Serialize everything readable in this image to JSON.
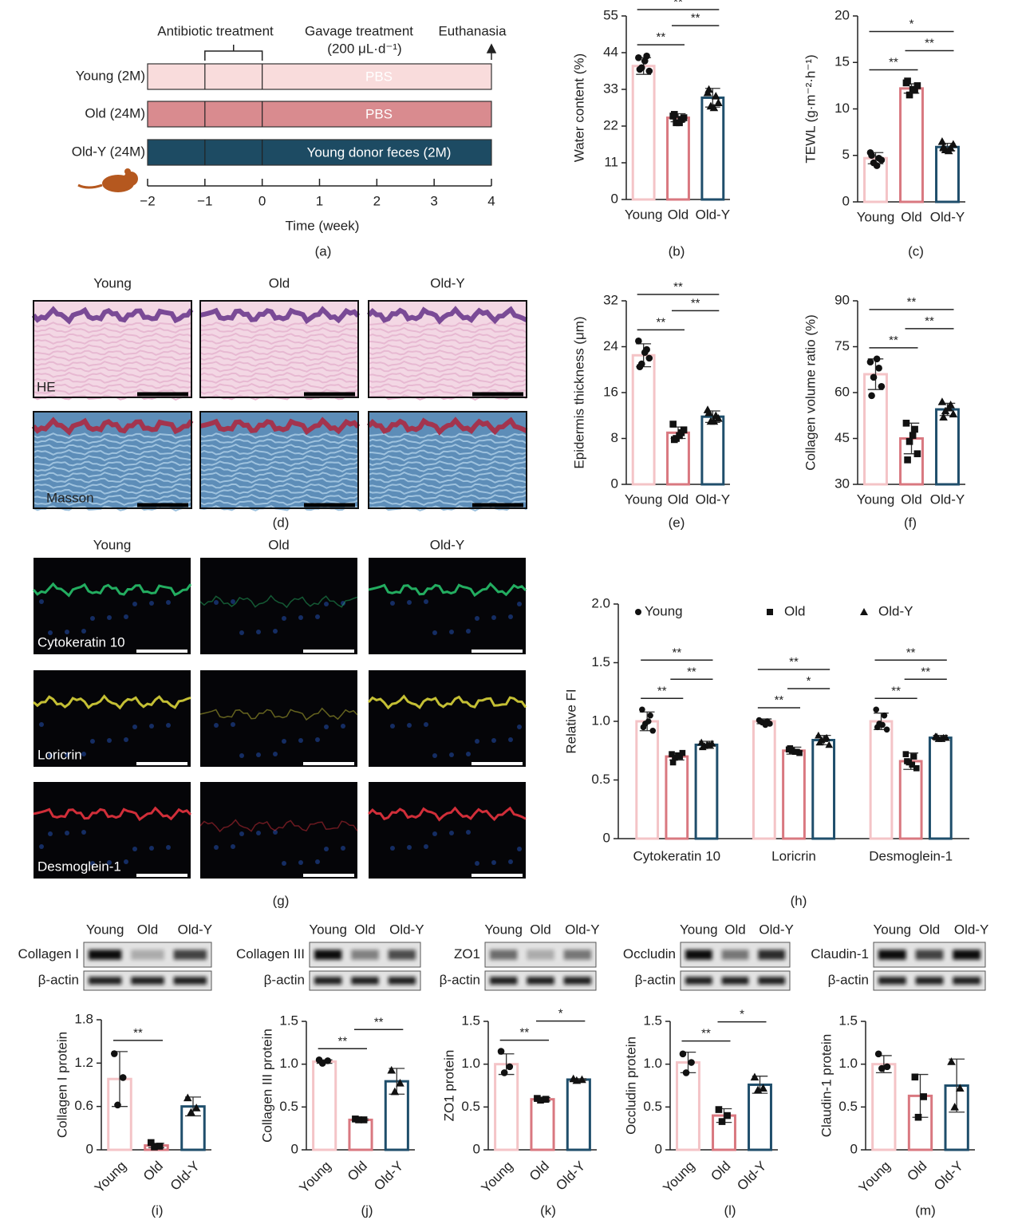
{
  "timeline": {
    "annotations": {
      "antibiotic": "Antibiotic treatment",
      "gavage": "Gavage treatment",
      "dose": "(200 μL·d⁻¹)",
      "end": "Euthanasia"
    },
    "rows": [
      {
        "label": "Young (2M)",
        "bar_text": "PBS",
        "color": "#f9dcdc"
      },
      {
        "label": "Old (24M)",
        "bar_text": "PBS",
        "color": "#d98b8f"
      },
      {
        "label": "Old-Y (24M)",
        "bar_text": "Young donor feces (2M)",
        "color": "#1d4b63"
      }
    ],
    "ticks": [
      {
        "value": -2,
        "label": "−2"
      },
      {
        "value": -1,
        "label": "−1"
      },
      0,
      1,
      2,
      3,
      4
    ],
    "xlabel": "Time (week)",
    "caption": "(a)"
  },
  "histology": {
    "columns": [
      "Young",
      "Old",
      "Old-Y"
    ],
    "rows": [
      "HE",
      "Masson"
    ],
    "caption": "(d)"
  },
  "immunofluorescence": {
    "columns": [
      "Young",
      "Old",
      "Old-Y"
    ],
    "rows": [
      "Cytokeratin 10",
      "Loricrin",
      "Desmoglein-1"
    ],
    "caption": "(g)"
  },
  "chart_data": [
    {
      "type": "bar",
      "caption": "(b)",
      "ylabel": "Water content (%)",
      "categories": [
        "Young",
        "Old",
        "Old-Y"
      ],
      "colors": [
        "#f4c4c7",
        "#d97880",
        "#1f4e6b"
      ],
      "markers": [
        "circle",
        "square",
        "triangle"
      ],
      "values": [
        40,
        24.5,
        30.5
      ],
      "errors": [
        2.5,
        1.2,
        2.8
      ],
      "points": [
        [
          42.5,
          43,
          39.5,
          38.5,
          39,
          41.5
        ],
        [
          25,
          24,
          23,
          24.5,
          25.5,
          23
        ],
        [
          32,
          31,
          28,
          29,
          33,
          27.5
        ]
      ],
      "ylim": [
        0,
        55
      ],
      "yticks": [
        0,
        11,
        22,
        33,
        44,
        55
      ],
      "significance": [
        {
          "pair": [
            "Young",
            "Old"
          ],
          "label": "**"
        },
        {
          "pair": [
            "Old",
            "Old-Y"
          ],
          "label": "**"
        },
        {
          "pair": [
            "Young",
            "Old-Y"
          ],
          "label": "**"
        }
      ]
    },
    {
      "type": "bar",
      "caption": "(c)",
      "ylabel": "TEWL (g·m⁻²·h⁻¹)",
      "categories": [
        "Young",
        "Old",
        "Old-Y"
      ],
      "colors": [
        "#f4c4c7",
        "#d97880",
        "#1f4e6b"
      ],
      "markers": [
        "circle",
        "square",
        "triangle"
      ],
      "values": [
        4.7,
        12.2,
        5.9
      ],
      "errors": [
        0.6,
        0.5,
        0.4
      ],
      "points": [
        [
          5.3,
          4.7,
          4.2,
          4.5,
          5.0,
          3.9
        ],
        [
          12.8,
          12.0,
          11.5,
          12.5,
          13.0,
          12.1
        ],
        [
          6.5,
          5.8,
          5.6,
          6.2,
          5.9,
          5.5
        ]
      ],
      "ylim": [
        0,
        20
      ],
      "yticks": [
        0,
        5,
        10,
        15,
        20
      ],
      "significance": [
        {
          "pair": [
            "Young",
            "Old"
          ],
          "label": "**"
        },
        {
          "pair": [
            "Old",
            "Old-Y"
          ],
          "label": "**"
        },
        {
          "pair": [
            "Young",
            "Old-Y"
          ],
          "label": "*"
        }
      ]
    },
    {
      "type": "bar",
      "caption": "(e)",
      "ylabel": "Epidermis thickness (μm)",
      "categories": [
        "Young",
        "Old",
        "Old-Y"
      ],
      "colors": [
        "#f4c4c7",
        "#d97880",
        "#1f4e6b"
      ],
      "markers": [
        "circle",
        "square",
        "triangle"
      ],
      "values": [
        22.5,
        9,
        11.8
      ],
      "errors": [
        2,
        1,
        1
      ],
      "points": [
        [
          25,
          23.5,
          21,
          22,
          20.5,
          23
        ],
        [
          10.5,
          9,
          8,
          9.5,
          7.8,
          8.5
        ],
        [
          13,
          12,
          11,
          11.5,
          12.5,
          11
        ]
      ],
      "ylim": [
        0,
        32
      ],
      "yticks": [
        0,
        8,
        16,
        24,
        32
      ],
      "significance": [
        {
          "pair": [
            "Young",
            "Old"
          ],
          "label": "**"
        },
        {
          "pair": [
            "Old",
            "Old-Y"
          ],
          "label": "**"
        },
        {
          "pair": [
            "Young",
            "Old-Y"
          ],
          "label": "**"
        }
      ]
    },
    {
      "type": "bar",
      "caption": "(f)",
      "ylabel": "Collagen volume ratio (%)",
      "categories": [
        "Young",
        "Old",
        "Old-Y"
      ],
      "colors": [
        "#f4c4c7",
        "#d97880",
        "#1f4e6b"
      ],
      "markers": [
        "circle",
        "square",
        "triangle"
      ],
      "values": [
        66,
        45,
        54.5
      ],
      "errors": [
        5,
        5,
        2
      ],
      "points": [
        [
          70,
          68,
          65,
          62,
          59,
          71
        ],
        [
          50,
          48,
          44,
          40,
          38,
          46
        ],
        [
          57,
          56,
          54,
          53,
          52,
          55
        ]
      ],
      "ylim": [
        30,
        90
      ],
      "yticks": [
        30,
        45,
        60,
        75,
        90
      ],
      "significance": [
        {
          "pair": [
            "Young",
            "Old"
          ],
          "label": "**"
        },
        {
          "pair": [
            "Old",
            "Old-Y"
          ],
          "label": "**"
        },
        {
          "pair": [
            "Young",
            "Old-Y"
          ],
          "label": "**"
        }
      ]
    },
    {
      "type": "grouped_bar",
      "caption": "(h)",
      "ylabel": "Relative FI",
      "legend": "top",
      "categories": [
        "Cytokeratin 10",
        "Loricrin",
        "Desmoglein-1"
      ],
      "series": [
        {
          "name": "Young",
          "color": "#f4c4c7",
          "marker": "circle",
          "values": [
            1.0,
            1.0,
            1.0
          ],
          "errors": [
            0.08,
            0.02,
            0.07
          ],
          "points": [
            [
              1.1,
              1.05,
              0.98,
              0.92,
              0.95,
              1.0
            ],
            [
              1.01,
              1.0,
              0.99,
              0.98,
              1.0,
              0.97
            ],
            [
              1.1,
              1.05,
              0.98,
              0.93,
              0.95,
              0.97
            ]
          ]
        },
        {
          "name": "Old",
          "color": "#d97880",
          "marker": "square",
          "values": [
            0.7,
            0.75,
            0.66
          ],
          "errors": [
            0.03,
            0.03,
            0.07
          ],
          "points": [
            [
              0.72,
              0.7,
              0.69,
              0.73,
              0.65,
              0.71
            ],
            [
              0.76,
              0.74,
              0.75,
              0.73,
              0.77,
              0.74
            ],
            [
              0.72,
              0.7,
              0.65,
              0.6,
              0.66,
              0.63
            ]
          ]
        },
        {
          "name": "Old-Y",
          "color": "#1f4e6b",
          "marker": "triangle",
          "values": [
            0.8,
            0.84,
            0.86
          ],
          "errors": [
            0.03,
            0.04,
            0.02
          ],
          "points": [
            [
              0.82,
              0.8,
              0.79,
              0.81,
              0.78,
              0.8
            ],
            [
              0.88,
              0.86,
              0.84,
              0.8,
              0.82,
              0.85
            ],
            [
              0.87,
              0.86,
              0.85,
              0.86,
              0.87,
              0.85
            ]
          ]
        }
      ],
      "ylim": [
        0,
        2
      ],
      "yticks": [
        0,
        0.5,
        {
          "value": 1,
          "label": "1.0"
        },
        1.5,
        {
          "value": 2,
          "label": "2.0"
        }
      ],
      "significance": [
        {
          "group": "Cytokeratin 10",
          "pair": [
            "Young",
            "Old"
          ],
          "label": "**"
        },
        {
          "group": "Cytokeratin 10",
          "pair": [
            "Old",
            "Old-Y"
          ],
          "label": "**"
        },
        {
          "group": "Cytokeratin 10",
          "pair": [
            "Young",
            "Old-Y"
          ],
          "label": "**"
        },
        {
          "group": "Loricrin",
          "pair": [
            "Young",
            "Old"
          ],
          "label": "**"
        },
        {
          "group": "Loricrin",
          "pair": [
            "Old",
            "Old-Y"
          ],
          "label": "*"
        },
        {
          "group": "Loricrin",
          "pair": [
            "Young",
            "Old-Y"
          ],
          "label": "**"
        },
        {
          "group": "Desmoglein-1",
          "pair": [
            "Young",
            "Old"
          ],
          "label": "**"
        },
        {
          "group": "Desmoglein-1",
          "pair": [
            "Old",
            "Old-Y"
          ],
          "label": "**"
        },
        {
          "group": "Desmoglein-1",
          "pair": [
            "Young",
            "Old-Y"
          ],
          "label": "**"
        }
      ]
    },
    {
      "type": "bar",
      "caption": "(i)",
      "ylabel": "Collagen I protein",
      "blot": {
        "target": "Collagen I",
        "control": "β-actin"
      },
      "xtick_rotation": -45,
      "categories": [
        "Young",
        "Old",
        "Old-Y"
      ],
      "colors": [
        "#f4c4c7",
        "#d97880",
        "#1f4e6b"
      ],
      "markers": [
        "circle",
        "square",
        "triangle"
      ],
      "values": [
        0.98,
        0.06,
        0.6
      ],
      "errors": [
        0.38,
        0.03,
        0.13
      ],
      "points": [
        [
          1.33,
          1.0,
          0.62
        ],
        [
          0.1,
          0.05,
          0.04
        ],
        [
          0.72,
          0.58,
          0.52
        ]
      ],
      "ylim": [
        0,
        1.8
      ],
      "yticks": [
        0,
        0.6,
        1.2,
        1.8
      ],
      "significance": [
        {
          "pair": [
            "Young",
            "Old"
          ],
          "label": "**"
        }
      ]
    },
    {
      "type": "bar",
      "caption": "(j)",
      "ylabel": "Collagen III protein",
      "blot": {
        "target": "Collagen III",
        "control": "β-actin"
      },
      "xtick_rotation": -45,
      "categories": [
        "Young",
        "Old",
        "Old-Y"
      ],
      "colors": [
        "#f4c4c7",
        "#d97880",
        "#1f4e6b"
      ],
      "markers": [
        "circle",
        "square",
        "triangle"
      ],
      "values": [
        1.03,
        0.35,
        0.8
      ],
      "errors": [
        0.02,
        0.01,
        0.15
      ],
      "points": [
        [
          1.05,
          1.04,
          1.01
        ],
        [
          0.36,
          0.35,
          0.35
        ],
        [
          0.93,
          0.78,
          0.68
        ]
      ],
      "ylim": [
        0,
        1.5
      ],
      "yticks": [
        0,
        0.5,
        {
          "value": 1,
          "label": "1.0"
        },
        1.5
      ],
      "significance": [
        {
          "pair": [
            "Young",
            "Old"
          ],
          "label": "**"
        },
        {
          "pair": [
            "Old",
            "Old-Y"
          ],
          "label": "**"
        }
      ]
    },
    {
      "type": "bar",
      "caption": "(k)",
      "ylabel": "ZO1 protein",
      "blot": {
        "target": "ZO1",
        "control": "β-actin"
      },
      "xtick_rotation": -45,
      "categories": [
        "Young",
        "Old",
        "Old-Y"
      ],
      "colors": [
        "#f4c4c7",
        "#d97880",
        "#1f4e6b"
      ],
      "markers": [
        "circle",
        "square",
        "triangle"
      ],
      "values": [
        1.0,
        0.59,
        0.82
      ],
      "errors": [
        0.12,
        0.02,
        0.01
      ],
      "points": [
        [
          1.15,
          0.97,
          0.9
        ],
        [
          0.6,
          0.59,
          0.58
        ],
        [
          0.83,
          0.82,
          0.81
        ]
      ],
      "ylim": [
        0,
        1.5
      ],
      "yticks": [
        0,
        0.5,
        {
          "value": 1,
          "label": "1.0"
        },
        1.5
      ],
      "significance": [
        {
          "pair": [
            "Young",
            "Old"
          ],
          "label": "**"
        },
        {
          "pair": [
            "Old",
            "Old-Y"
          ],
          "label": "*"
        }
      ]
    },
    {
      "type": "bar",
      "caption": "(l)",
      "ylabel": "Occludin protein",
      "blot": {
        "target": "Occludin",
        "control": "β-actin"
      },
      "xtick_rotation": -45,
      "categories": [
        "Young",
        "Old",
        "Old-Y"
      ],
      "colors": [
        "#f4c4c7",
        "#d97880",
        "#1f4e6b"
      ],
      "markers": [
        "circle",
        "square",
        "triangle"
      ],
      "values": [
        1.02,
        0.4,
        0.76
      ],
      "errors": [
        0.12,
        0.08,
        0.1
      ],
      "points": [
        [
          1.12,
          1.02,
          0.9
        ],
        [
          0.47,
          0.4,
          0.33
        ],
        [
          0.85,
          0.72,
          0.7
        ]
      ],
      "ylim": [
        0,
        1.5
      ],
      "yticks": [
        0,
        0.5,
        {
          "value": 1,
          "label": "1.0"
        },
        1.5
      ],
      "significance": [
        {
          "pair": [
            "Young",
            "Old"
          ],
          "label": "**"
        },
        {
          "pair": [
            "Old",
            "Old-Y"
          ],
          "label": "*"
        }
      ]
    },
    {
      "type": "bar",
      "caption": "(m)",
      "ylabel": "Claudin-1 protein",
      "blot": {
        "target": "Claudin-1",
        "control": "β-actin"
      },
      "xtick_rotation": -45,
      "categories": [
        "Young",
        "Old",
        "Old-Y"
      ],
      "colors": [
        "#f4c4c7",
        "#d97880",
        "#1f4e6b"
      ],
      "markers": [
        "circle",
        "square",
        "triangle"
      ],
      "values": [
        1.0,
        0.63,
        0.75
      ],
      "errors": [
        0.1,
        0.25,
        0.31
      ],
      "points": [
        [
          1.12,
          0.97,
          0.95
        ],
        [
          0.85,
          0.62,
          0.38
        ],
        [
          1.03,
          0.72,
          0.5
        ]
      ],
      "ylim": [
        0,
        1.5
      ],
      "yticks": [
        0,
        0.5,
        {
          "value": 1,
          "label": "1.0"
        },
        1.5
      ],
      "significance": []
    }
  ]
}
